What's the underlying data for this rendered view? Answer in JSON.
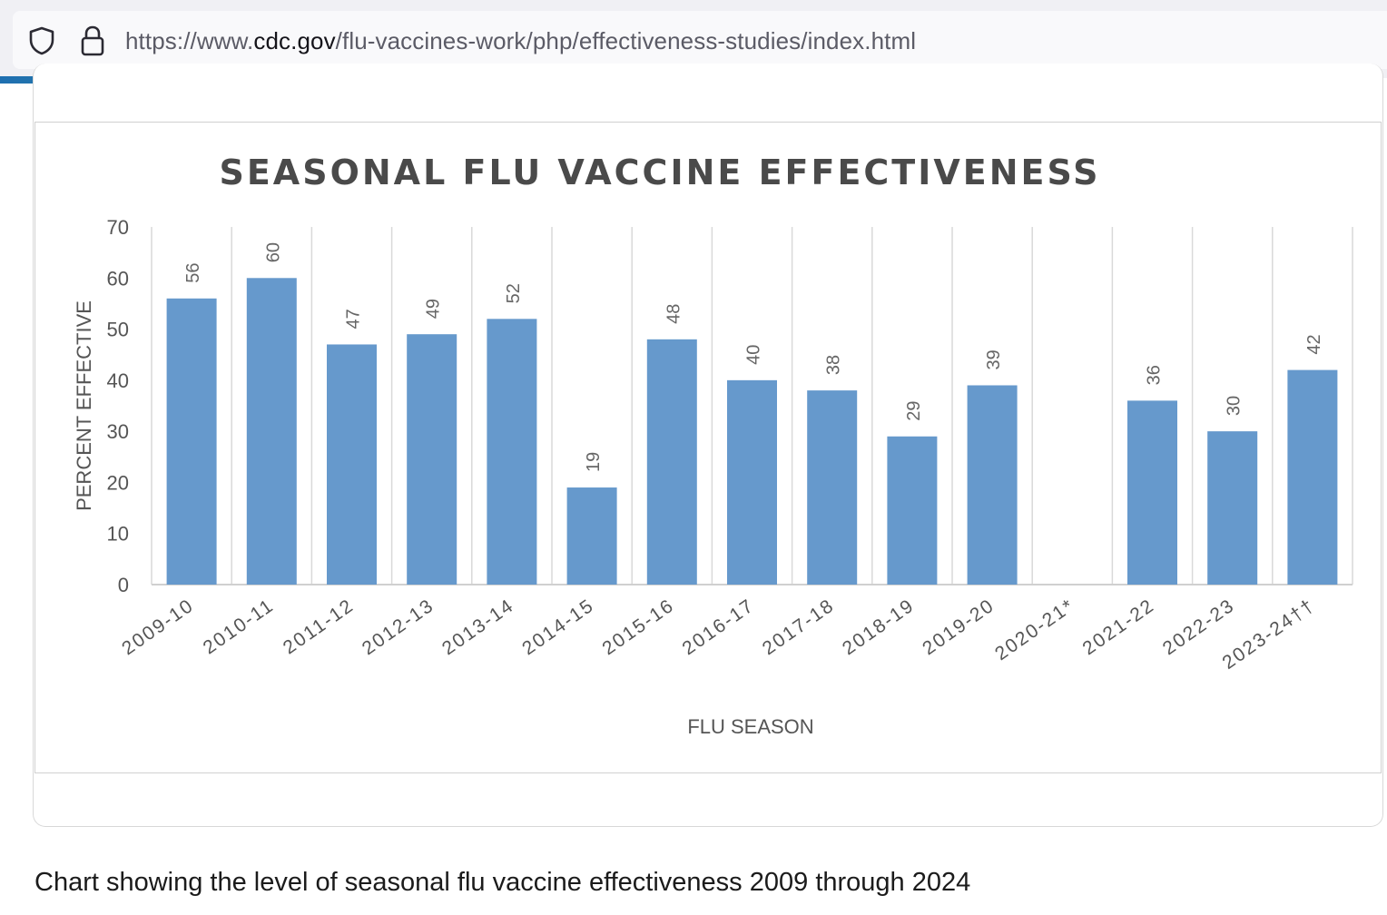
{
  "browser": {
    "url_prefix": "https://www.",
    "url_host": "cdc.gov",
    "url_path": "/flu-vaccines-work/php/effectiveness-studies/index.html"
  },
  "caption": "Chart showing the level of seasonal flu vaccine effectiveness 2009 through 2024",
  "chart_data": {
    "type": "bar",
    "title": "SEASONAL FLU VACCINE EFFECTIVENESS",
    "xlabel": "FLU SEASON",
    "ylabel": "PERCENT EFFECTIVE",
    "ylim": [
      0,
      70
    ],
    "yticks": [
      0,
      10,
      20,
      30,
      40,
      50,
      60,
      70
    ],
    "categories": [
      "2009-10",
      "2010-11",
      "2011-12",
      "2012-13",
      "2013-14",
      "2014-15",
      "2015-16",
      "2016-17",
      "2017-18",
      "2018-19",
      "2019-20",
      "2020-21*",
      "2021-22",
      "2022-23",
      "2023-24††"
    ],
    "values": [
      56,
      60,
      47,
      49,
      52,
      19,
      48,
      40,
      38,
      29,
      39,
      null,
      36,
      30,
      42
    ],
    "bar_color": "#6699cc",
    "grid": "vertical",
    "data_labels": true
  }
}
